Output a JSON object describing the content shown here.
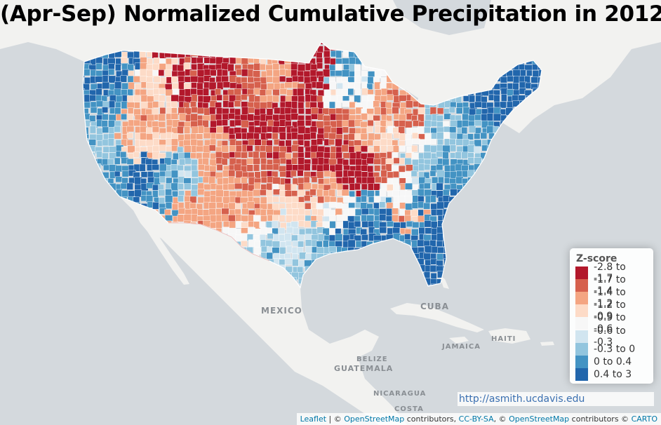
{
  "title": "(Apr-Sep) Normalized Cumulative Precipitation in 2012",
  "labels": {
    "mexico": "MEXICO",
    "cuba": "CUBA",
    "jamaica": "JAMAICA",
    "haiti": "HAITI",
    "belize": "BELIZE",
    "guatemala": "GUATEMALA",
    "nicaragua": "NICARAGUA",
    "costa": "COSTA"
  },
  "legend": {
    "title": "Z-score",
    "items": [
      {
        "label": "-2.8 to -1.7",
        "color": "#b2182b"
      },
      {
        "label": "-1.7 to -1.4",
        "color": "#d6604d"
      },
      {
        "label": "-1.4 to -1.2",
        "color": "#f4a582"
      },
      {
        "label": "-1.2 to -0.9",
        "color": "#fddbc7"
      },
      {
        "label": "-0.9 to -0.6",
        "color": "#f7f7f7"
      },
      {
        "label": "-0.6 to -0.3",
        "color": "#d1e5f0"
      },
      {
        "label": "-0.3 to 0",
        "color": "#92c5de"
      },
      {
        "label": "0 to 0.4",
        "color": "#4393c3"
      },
      {
        "label": "0.4 to 3",
        "color": "#2166ac"
      }
    ]
  },
  "url": "http://asmith.ucdavis.edu",
  "attribution": {
    "leaflet": "Leaflet",
    "sep1": " | © ",
    "osm1": "OpenStreetMap",
    "contrib1": " contributors, ",
    "ccbysa": "CC-BY-SA",
    "sep2": ", © ",
    "osm2": "OpenStreetMap",
    "contrib2": " contributors © ",
    "carto": "CARTO"
  },
  "colors": {
    "land": "#f2f2f0",
    "water": "#d4d9dd",
    "lake": "#cfd5da",
    "border": "#ffffff"
  }
}
